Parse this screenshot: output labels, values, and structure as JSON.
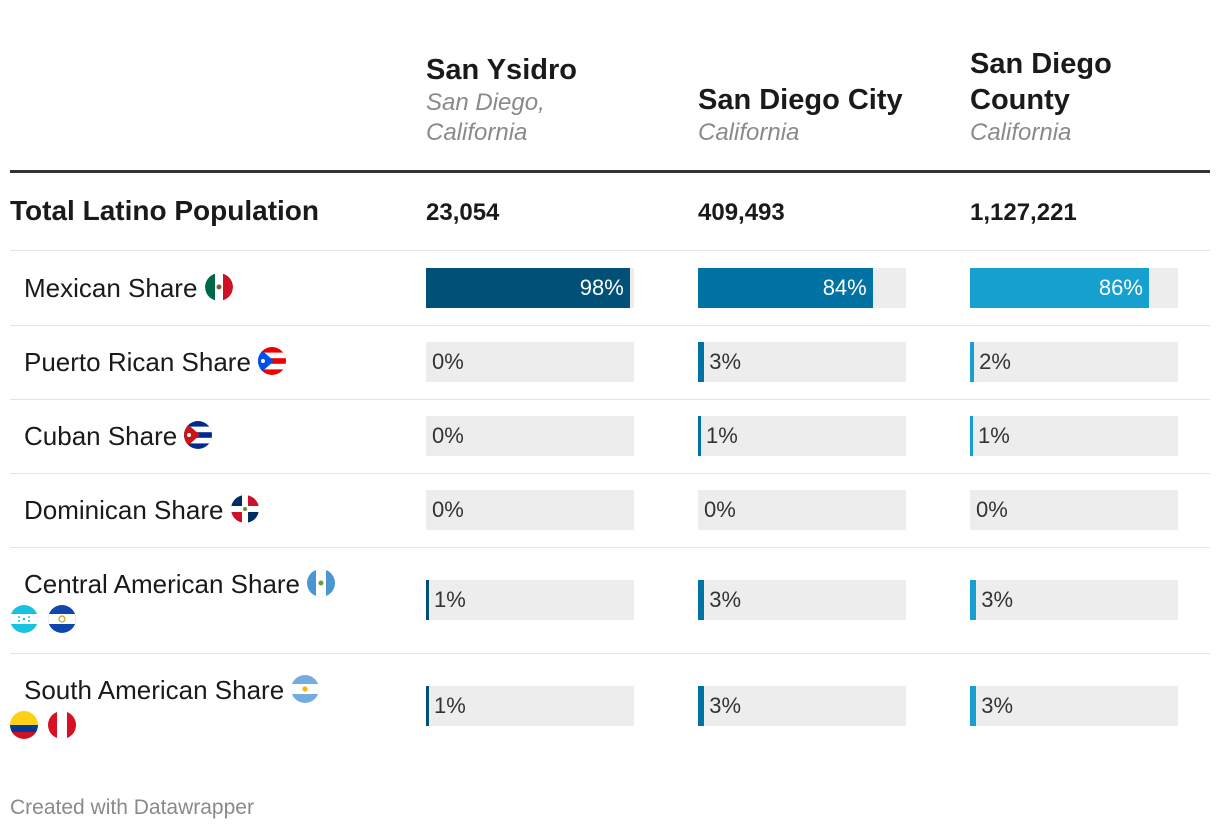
{
  "columns": [
    {
      "title": "San Ysidro",
      "subtitle": "San Diego, California",
      "color": "#005078"
    },
    {
      "title": "San Diego City",
      "subtitle": "California",
      "color": "#0072a3"
    },
    {
      "title": "San Diego County",
      "subtitle": "California",
      "color": "#15a0cf"
    }
  ],
  "footer": "Created with Datawrapper",
  "chart_data": {
    "type": "table",
    "columns": [
      "San Ysidro",
      "San Diego City",
      "San Diego County"
    ],
    "total_row": {
      "label": "Total Latino Population",
      "values": [
        "23,054",
        "409,493",
        "1,127,221"
      ]
    },
    "rows": [
      {
        "label": "Mexican Share",
        "flags": [
          "mexico-flag-icon"
        ],
        "values": [
          98,
          84,
          86
        ],
        "labels": [
          "98%",
          "84%",
          "86%"
        ]
      },
      {
        "label": "Puerto Rican Share",
        "flags": [
          "puerto-rico-flag-icon"
        ],
        "values": [
          0,
          3,
          2
        ],
        "labels": [
          "0%",
          "3%",
          "2%"
        ]
      },
      {
        "label": "Cuban Share",
        "flags": [
          "cuba-flag-icon"
        ],
        "values": [
          0,
          1,
          1
        ],
        "labels": [
          "0%",
          "1%",
          "1%"
        ]
      },
      {
        "label": "Dominican Share",
        "flags": [
          "dominican-republic-flag-icon"
        ],
        "values": [
          0,
          0,
          0
        ],
        "labels": [
          "0%",
          "0%",
          "0%"
        ]
      },
      {
        "label": "Central American Share",
        "flags": [
          "guatemala-flag-icon",
          "honduras-flag-icon",
          "el-salvador-flag-icon"
        ],
        "values": [
          1,
          3,
          3
        ],
        "labels": [
          "1%",
          "3%",
          "3%"
        ]
      },
      {
        "label": "South American Share",
        "flags": [
          "argentina-flag-icon",
          "colombia-flag-icon",
          "peru-flag-icon"
        ],
        "values": [
          1,
          3,
          3
        ],
        "labels": [
          "1%",
          "3%",
          "3%"
        ]
      }
    ],
    "max": 100
  }
}
